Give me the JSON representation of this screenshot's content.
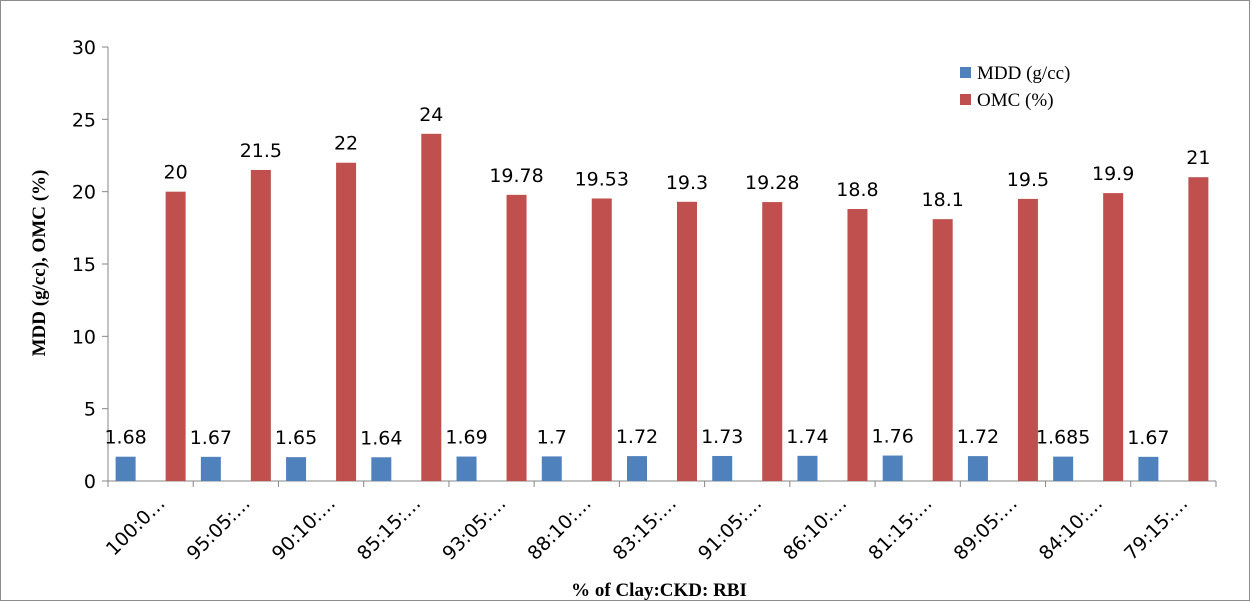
{
  "chart_data": {
    "type": "bar",
    "categories": [
      "100:0…",
      "95:05:…",
      "90:10:…",
      "85:15:…",
      "93:05:…",
      "88:10:…",
      "83:15:…",
      "91:05:…",
      "86:10:…",
      "81:15:…",
      "89:05:…",
      "84:10:…",
      "79:15:…"
    ],
    "series": [
      {
        "name": "MDD (g/cc)",
        "color": "#4f81bd",
        "values": [
          1.68,
          1.67,
          1.65,
          1.64,
          1.69,
          1.7,
          1.72,
          1.73,
          1.74,
          1.76,
          1.72,
          1.685,
          1.67
        ],
        "labels": [
          "1.68",
          "1.67",
          "1.65",
          "1.64",
          "1.69",
          "1.7",
          "1.72",
          "1.73",
          "1.74",
          "1.76",
          "1.72",
          "1.685",
          "1.67"
        ]
      },
      {
        "name": "OMC (%)",
        "color": "#c0504d",
        "values": [
          20,
          21.5,
          22,
          24,
          19.78,
          19.53,
          19.3,
          19.28,
          18.8,
          18.1,
          19.5,
          19.9,
          21
        ],
        "labels": [
          "20",
          "21.5",
          "22",
          "24",
          "19.78",
          "19.53",
          "19.3",
          "19.28",
          "18.8",
          "18.1",
          "19.5",
          "19.9",
          "21"
        ]
      }
    ],
    "xlabel": "% of Clay:CKD: RBI",
    "ylabel": "MDD (g/cc), OMC (%)",
    "ylim": [
      0,
      30
    ],
    "yticks": [
      0,
      5,
      10,
      15,
      20,
      25,
      30
    ],
    "grid": false,
    "legend": "top-right"
  }
}
